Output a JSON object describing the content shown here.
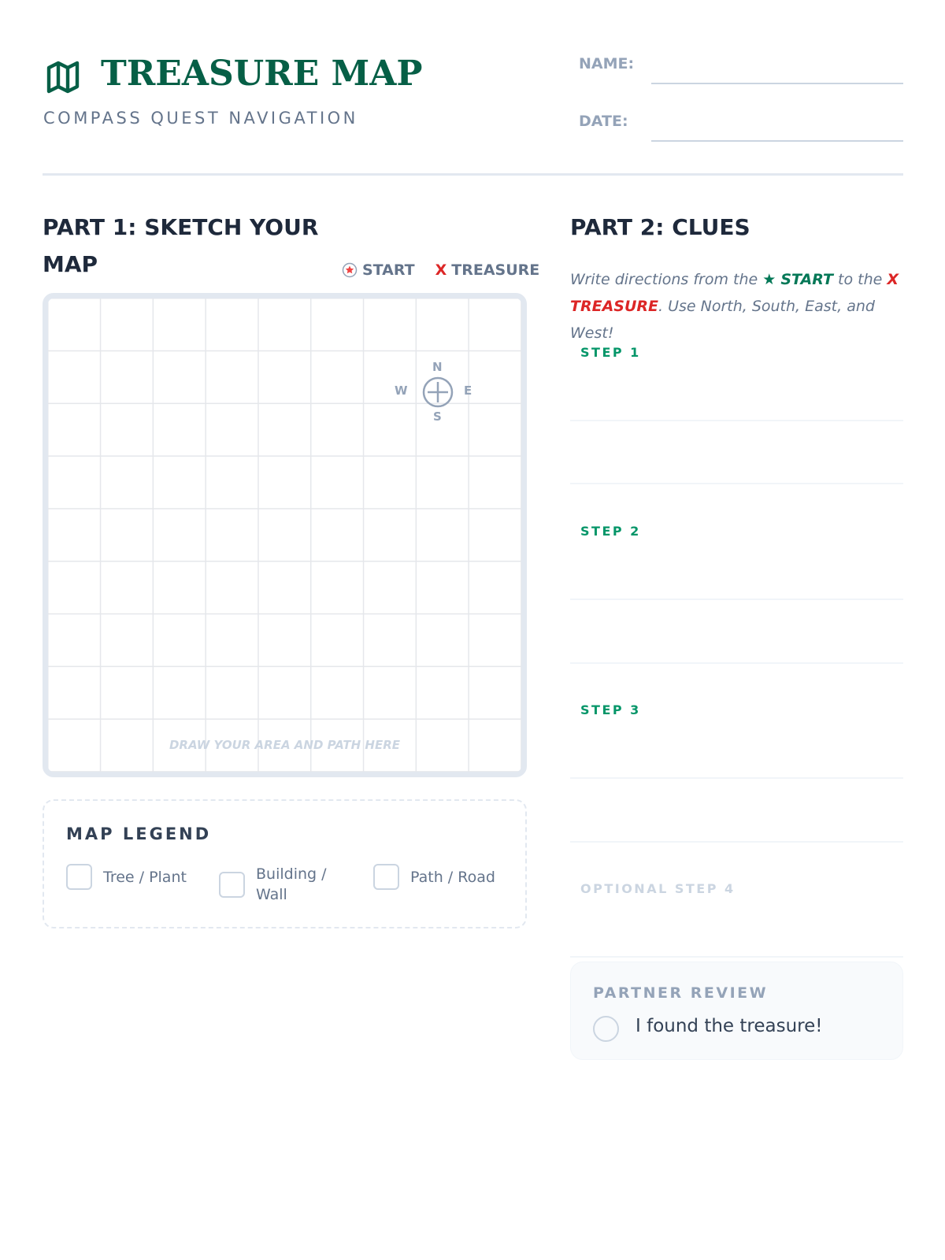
{
  "header": {
    "title": "TREASURE MAP",
    "subtitle": "COMPASS QUEST NAVIGATION",
    "icon": "map-icon",
    "fields": [
      {
        "label": "NAME:",
        "value": ""
      },
      {
        "label": "DATE:",
        "value": ""
      }
    ]
  },
  "part1": {
    "title": "PART 1: SKETCH YOUR MAP",
    "keys": [
      {
        "icon": "star-circle-icon",
        "label": "START",
        "color": "#ef4444"
      },
      {
        "icon": "x-icon",
        "symbol": "X",
        "label": "TREASURE",
        "color": "#dc2626"
      }
    ],
    "grid": {
      "rows": 9,
      "cols": 9,
      "hint": "DRAW YOUR AREA AND PATH HERE"
    },
    "compass": {
      "n": "N",
      "s": "S",
      "e": "E",
      "w": "W"
    },
    "legend": {
      "title": "MAP LEGEND",
      "items": [
        {
          "label": "Tree / Plant",
          "checked": false
        },
        {
          "label": "Building / Wall",
          "checked": false
        },
        {
          "label": "Path / Road",
          "checked": false
        }
      ]
    }
  },
  "part2": {
    "title": "PART 2: CLUES",
    "instructions": {
      "pre": "Write directions from the ",
      "star": "★",
      "start": "START",
      "mid": " to the ",
      "x": "X",
      "treasure": "TREASURE",
      "post": ". Use North, South, East, and West!"
    },
    "steps": [
      "STEP 1",
      "STEP 2",
      "STEP 3",
      "OPTIONAL STEP 4"
    ],
    "review": {
      "title": "PARTNER REVIEW",
      "option": "I found the treasure!",
      "checked": false
    }
  },
  "colors": {
    "brand": "#065f46",
    "step": "#059669",
    "treasure": "#dc2626"
  }
}
